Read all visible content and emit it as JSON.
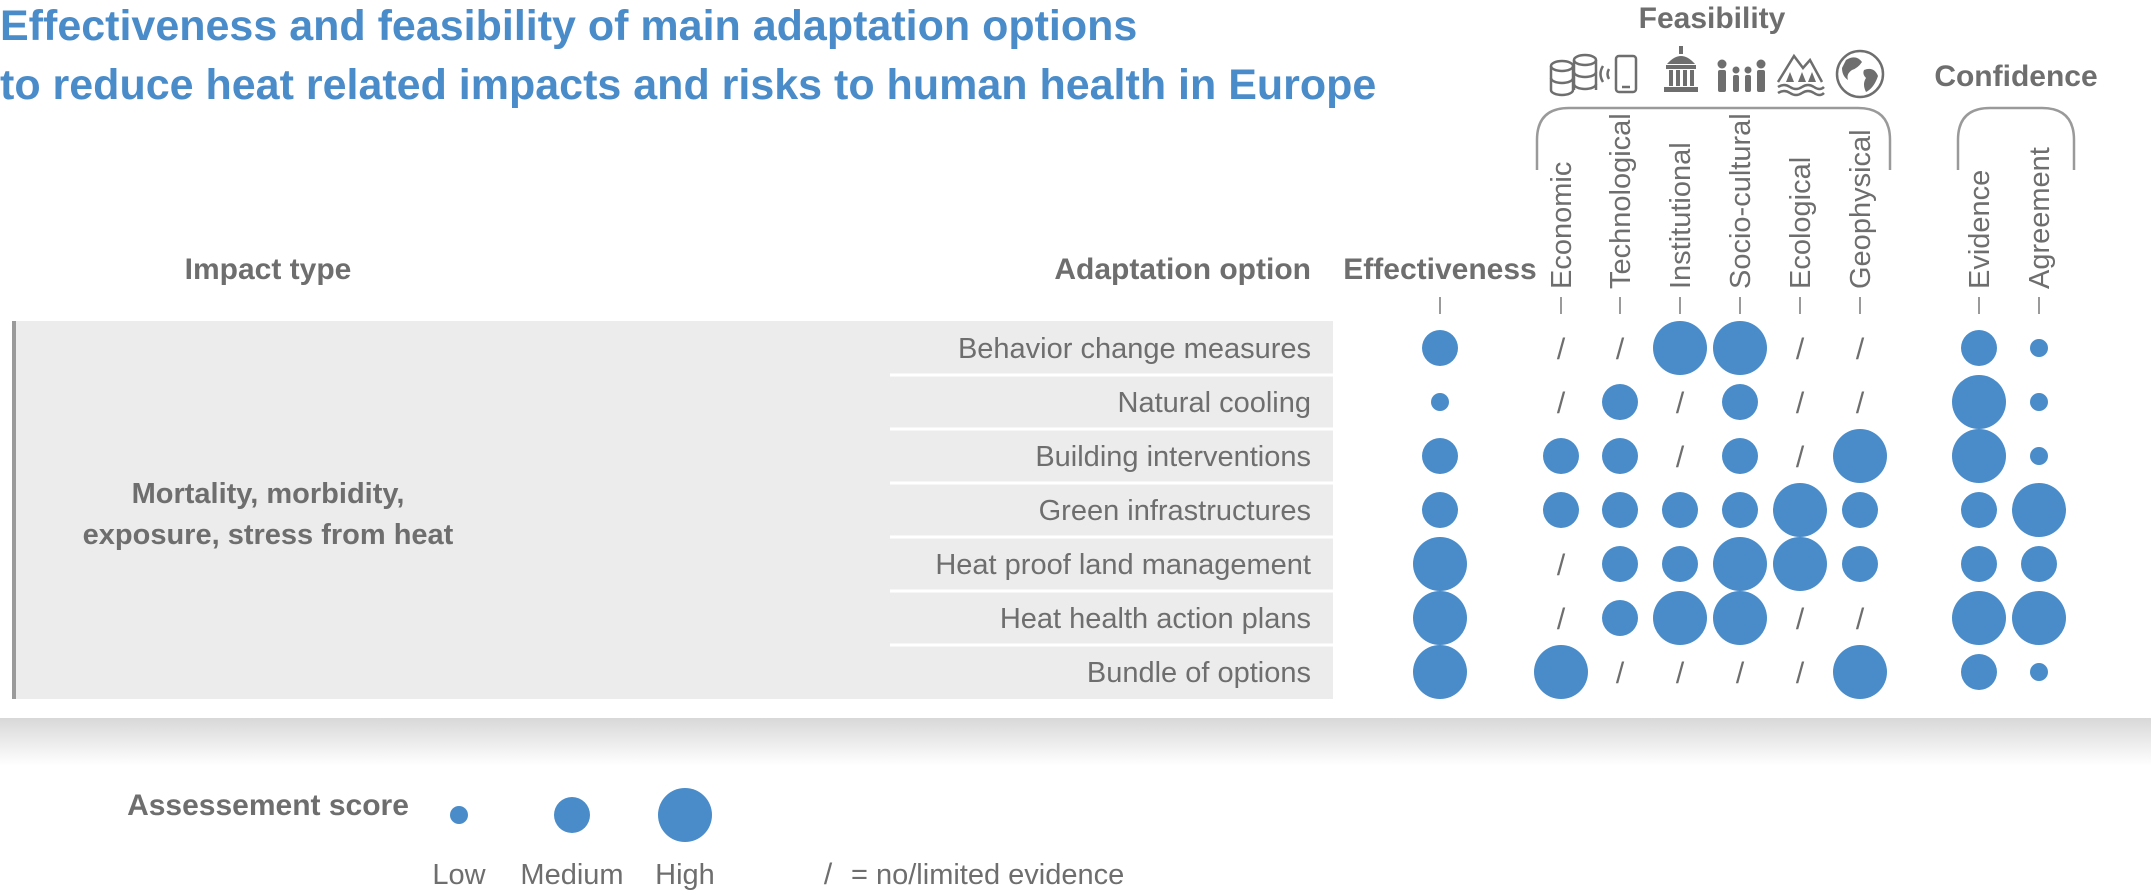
{
  "title": {
    "line1": "Effectiveness and feasibility of main adaptation options",
    "line2": "to reduce heat related impacts and risks to human health in Europe"
  },
  "headers": {
    "impact_type": "Impact type",
    "adaptation_option": "Adaptation option",
    "effectiveness": "Effectiveness",
    "feasibility": "Feasibility",
    "confidence": "Confidence"
  },
  "icons": [
    "money-coins-icon",
    "phone-signal-icon",
    "institution-building-icon",
    "people-group-icon",
    "ecosystem-landscape-icon",
    "globe-icon"
  ],
  "colors": {
    "title": "#4a8cc9",
    "dot": "#4a8cc9",
    "text": "#6e6e6e",
    "band": "#ececec"
  },
  "chart_data": {
    "type": "table",
    "impact_type": "Mortality, morbidity,\nexposure, stress from heat",
    "impact_lines": [
      "Mortality, morbidity,",
      "exposure, stress from heat"
    ],
    "columns": [
      {
        "key": "effectiveness",
        "label": "Effectiveness",
        "group": "effectiveness"
      },
      {
        "key": "economic",
        "label": "Economic",
        "group": "feasibility"
      },
      {
        "key": "technological",
        "label": "Technological",
        "group": "feasibility"
      },
      {
        "key": "institutional",
        "label": "Institutional",
        "group": "feasibility"
      },
      {
        "key": "socio_cultural",
        "label": "Socio-cultural",
        "group": "feasibility"
      },
      {
        "key": "ecological",
        "label": "Ecological",
        "group": "feasibility"
      },
      {
        "key": "geophysical",
        "label": "Geophysical",
        "group": "feasibility"
      },
      {
        "key": "evidence",
        "label": "Evidence",
        "group": "confidence"
      },
      {
        "key": "agreement",
        "label": "Agreement",
        "group": "confidence"
      }
    ],
    "scale": [
      "Low",
      "Medium",
      "High"
    ],
    "no_evidence_marker": "/",
    "rows": [
      {
        "option": "Behavior change measures",
        "scores": [
          "Medium",
          "/",
          "/",
          "High",
          "High",
          "/",
          "/",
          "Medium",
          "Low"
        ]
      },
      {
        "option": "Natural cooling",
        "scores": [
          "Low",
          "/",
          "Medium",
          "/",
          "Medium",
          "/",
          "/",
          "High",
          "Low"
        ]
      },
      {
        "option": "Building interventions",
        "scores": [
          "Medium",
          "Medium",
          "Medium",
          "/",
          "Medium",
          "/",
          "High",
          "High",
          "Low"
        ]
      },
      {
        "option": "Green infrastructures",
        "scores": [
          "Medium",
          "Medium",
          "Medium",
          "Medium",
          "Medium",
          "High",
          "Medium",
          "Medium",
          "High"
        ]
      },
      {
        "option": "Heat proof land management",
        "scores": [
          "High",
          "/",
          "Medium",
          "Medium",
          "High",
          "High",
          "Medium",
          "Medium",
          "Medium"
        ]
      },
      {
        "option": "Heat health action plans",
        "scores": [
          "High",
          "/",
          "Medium",
          "High",
          "High",
          "/",
          "/",
          "High",
          "High"
        ]
      },
      {
        "option": "Bundle of options",
        "scores": [
          "High",
          "High",
          "/",
          "/",
          "/",
          "/",
          "High",
          "Medium",
          "Low"
        ]
      }
    ]
  },
  "legend": {
    "title": "Assessement score",
    "low": "Low",
    "medium": "Medium",
    "high": "High",
    "slash_symbol": "/",
    "slash_text": "= no/limited evidence"
  }
}
